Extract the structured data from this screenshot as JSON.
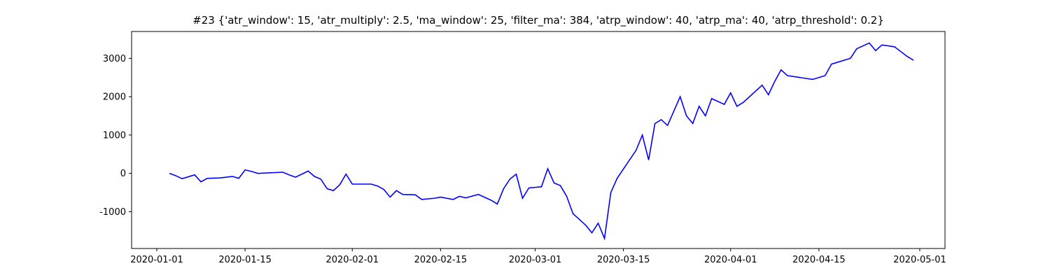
{
  "chart_data": {
    "type": "line",
    "title": "#23 {'atr_window': 15, 'atr_multiply': 2.5, 'ma_window': 25, 'filter_ma': 384, 'atrp_window': 40, 'atrp_ma': 40, 'atrp_threshold': 0.2}",
    "x": [
      "2020-01-03",
      "2020-01-04",
      "2020-01-05",
      "2020-01-07",
      "2020-01-08",
      "2020-01-09",
      "2020-01-11",
      "2020-01-13",
      "2020-01-14",
      "2020-01-15",
      "2020-01-16",
      "2020-01-17",
      "2020-01-21",
      "2020-01-22",
      "2020-01-23",
      "2020-01-25",
      "2020-01-26",
      "2020-01-27",
      "2020-01-28",
      "2020-01-29",
      "2020-01-30",
      "2020-01-31",
      "2020-02-01",
      "2020-02-04",
      "2020-02-05",
      "2020-02-06",
      "2020-02-07",
      "2020-02-08",
      "2020-02-09",
      "2020-02-11",
      "2020-02-12",
      "2020-02-14",
      "2020-02-15",
      "2020-02-17",
      "2020-02-18",
      "2020-02-19",
      "2020-02-21",
      "2020-02-23",
      "2020-02-24",
      "2020-02-25",
      "2020-02-26",
      "2020-02-27",
      "2020-02-28",
      "2020-02-29",
      "2020-03-02",
      "2020-03-03",
      "2020-03-04",
      "2020-03-05",
      "2020-03-06",
      "2020-03-07",
      "2020-03-09",
      "2020-03-10",
      "2020-03-11",
      "2020-03-12",
      "2020-03-13",
      "2020-03-14",
      "2020-03-17",
      "2020-03-18",
      "2020-03-19",
      "2020-03-20",
      "2020-03-21",
      "2020-03-22",
      "2020-03-24",
      "2020-03-25",
      "2020-03-26",
      "2020-03-27",
      "2020-03-28",
      "2020-03-29",
      "2020-03-31",
      "2020-04-01",
      "2020-04-02",
      "2020-04-03",
      "2020-04-04",
      "2020-04-06",
      "2020-04-07",
      "2020-04-08",
      "2020-04-09",
      "2020-04-10",
      "2020-04-12",
      "2020-04-14",
      "2020-04-15",
      "2020-04-16",
      "2020-04-17",
      "2020-04-18",
      "2020-04-20",
      "2020-04-21",
      "2020-04-23",
      "2020-04-24",
      "2020-04-25",
      "2020-04-27",
      "2020-04-29",
      "2020-04-30"
    ],
    "series": [
      {
        "color": "#0000ff",
        "values": [
          0,
          -60,
          -140,
          -40,
          -220,
          -130,
          -120,
          -80,
          -130,
          90,
          50,
          0,
          30,
          -40,
          -100,
          60,
          -80,
          -150,
          -400,
          -450,
          -300,
          -20,
          -280,
          -280,
          -330,
          -420,
          -620,
          -450,
          -550,
          -560,
          -680,
          -650,
          -620,
          -680,
          -600,
          -640,
          -550,
          -700,
          -800,
          -400,
          -150,
          -20,
          -650,
          -380,
          -350,
          120,
          -250,
          -320,
          -600,
          -1050,
          -1350,
          -1550,
          -1300,
          -1700,
          -500,
          -130,
          600,
          1000,
          350,
          1300,
          1400,
          1250,
          2000,
          1500,
          1300,
          1750,
          1500,
          1950,
          1800,
          2100,
          1750,
          1850,
          2000,
          2300,
          2050,
          2400,
          2700,
          2550,
          2500,
          2450,
          2500,
          2550,
          2850,
          2900,
          3000,
          3250,
          3400,
          3200,
          3350,
          3300,
          3050,
          2950
        ]
      }
    ],
    "xlim": [
      "2019-12-28",
      "2020-05-05"
    ],
    "xticks": [
      "2020-01-01",
      "2020-01-15",
      "2020-02-01",
      "2020-02-15",
      "2020-03-01",
      "2020-03-15",
      "2020-04-01",
      "2020-04-15",
      "2020-05-01"
    ],
    "ylim": [
      -1960,
      3700
    ],
    "yticks": [
      -1000,
      0,
      1000,
      2000,
      3000
    ],
    "grid": false
  }
}
